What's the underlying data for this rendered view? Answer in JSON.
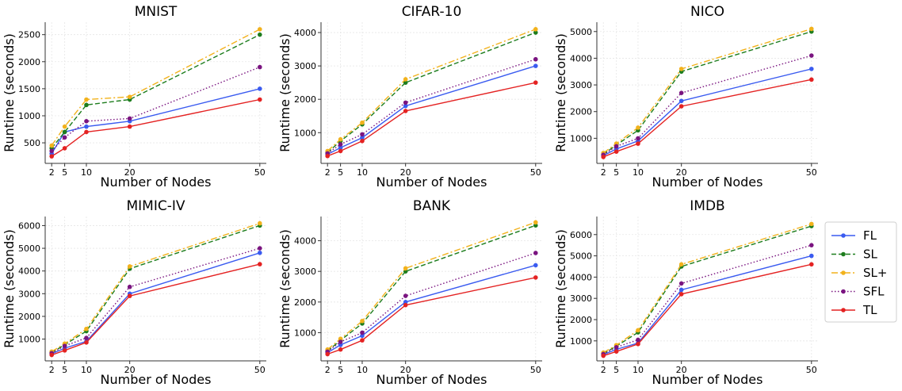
{
  "chart_data": [
    {
      "type": "line",
      "title": "MNIST",
      "xlabel": "Number of Nodes",
      "ylabel": "Runtime (seconds)",
      "x": [
        2,
        5,
        10,
        20,
        50
      ],
      "xlim": [
        0.5,
        51.5
      ],
      "ylim": [
        120,
        2730
      ],
      "yticks": [
        500,
        1000,
        1500,
        2000,
        2500
      ],
      "series": [
        {
          "name": "FL",
          "values": [
            300,
            700,
            800,
            900,
            1500
          ]
        },
        {
          "name": "SL",
          "values": [
            400,
            700,
            1200,
            1300,
            2500
          ]
        },
        {
          "name": "SL+",
          "values": [
            450,
            800,
            1300,
            1350,
            2600
          ]
        },
        {
          "name": "SFL",
          "values": [
            350,
            600,
            900,
            950,
            1900
          ]
        },
        {
          "name": "TL",
          "values": [
            250,
            400,
            700,
            800,
            1300
          ]
        }
      ]
    },
    {
      "type": "line",
      "title": "CIFAR-10",
      "xlabel": "Number of Nodes",
      "ylabel": "Runtime (seconds)",
      "x": [
        2,
        5,
        10,
        20,
        50
      ],
      "xlim": [
        0.5,
        51.5
      ],
      "ylim": [
        80,
        4310
      ],
      "yticks": [
        1000,
        2000,
        3000,
        4000
      ],
      "series": [
        {
          "name": "FL",
          "values": [
            350,
            550,
            850,
            1800,
            3000
          ]
        },
        {
          "name": "SL",
          "values": [
            400,
            750,
            1250,
            2500,
            4000
          ]
        },
        {
          "name": "SL+",
          "values": [
            450,
            800,
            1300,
            2600,
            4100
          ]
        },
        {
          "name": "SFL",
          "values": [
            380,
            650,
            950,
            1900,
            3200
          ]
        },
        {
          "name": "TL",
          "values": [
            300,
            450,
            750,
            1650,
            2500
          ]
        }
      ]
    },
    {
      "type": "line",
      "title": "NICO",
      "xlabel": "Number of Nodes",
      "ylabel": "Runtime (seconds)",
      "x": [
        2,
        5,
        10,
        20,
        50
      ],
      "xlim": [
        0.5,
        51.5
      ],
      "ylim": [
        60,
        5350
      ],
      "yticks": [
        1000,
        2000,
        3000,
        4000,
        5000
      ],
      "series": [
        {
          "name": "FL",
          "values": [
            350,
            600,
            900,
            2400,
            3600
          ]
        },
        {
          "name": "SL",
          "values": [
            400,
            750,
            1300,
            3500,
            5000
          ]
        },
        {
          "name": "SL+",
          "values": [
            450,
            800,
            1400,
            3600,
            5100
          ]
        },
        {
          "name": "SFL",
          "values": [
            380,
            700,
            1000,
            2700,
            4100
          ]
        },
        {
          "name": "TL",
          "values": [
            300,
            500,
            800,
            2200,
            3200
          ]
        }
      ]
    },
    {
      "type": "line",
      "title": "MIMIC-IV",
      "xlabel": "Number of Nodes",
      "ylabel": "Runtime (seconds)",
      "x": [
        2,
        5,
        10,
        20,
        50
      ],
      "xlim": [
        0.5,
        51.5
      ],
      "ylim": [
        40,
        6400
      ],
      "yticks": [
        1000,
        2000,
        3000,
        4000,
        5000,
        6000
      ],
      "series": [
        {
          "name": "FL",
          "values": [
            350,
            600,
            900,
            3000,
            4800
          ]
        },
        {
          "name": "SL",
          "values": [
            400,
            750,
            1350,
            4100,
            6000
          ]
        },
        {
          "name": "SL+",
          "values": [
            450,
            800,
            1450,
            4200,
            6100
          ]
        },
        {
          "name": "SFL",
          "values": [
            380,
            700,
            1050,
            3300,
            5000
          ]
        },
        {
          "name": "TL",
          "values": [
            300,
            500,
            850,
            2900,
            4300
          ]
        }
      ]
    },
    {
      "type": "line",
      "title": "BANK",
      "xlabel": "Number of Nodes",
      "ylabel": "Runtime (seconds)",
      "x": [
        2,
        5,
        10,
        20,
        50
      ],
      "xlim": [
        0.5,
        51.5
      ],
      "ylim": [
        80,
        4790
      ],
      "yticks": [
        1000,
        2000,
        3000,
        4000
      ],
      "series": [
        {
          "name": "FL",
          "values": [
            350,
            600,
            900,
            2000,
            3200
          ]
        },
        {
          "name": "SL",
          "values": [
            400,
            750,
            1300,
            3000,
            4500
          ]
        },
        {
          "name": "SL+",
          "values": [
            450,
            800,
            1380,
            3100,
            4600
          ]
        },
        {
          "name": "SFL",
          "values": [
            380,
            700,
            1000,
            2200,
            3600
          ]
        },
        {
          "name": "TL",
          "values": [
            300,
            450,
            750,
            1900,
            2800
          ]
        }
      ]
    },
    {
      "type": "line",
      "title": "IMDB",
      "xlabel": "Number of Nodes",
      "ylabel": "Runtime (seconds)",
      "x": [
        2,
        5,
        10,
        20,
        50
      ],
      "xlim": [
        0.5,
        51.5
      ],
      "ylim": [
        60,
        6850
      ],
      "yticks": [
        1000,
        2000,
        3000,
        4000,
        5000,
        6000
      ],
      "series": [
        {
          "name": "FL",
          "values": [
            350,
            600,
            900,
            3400,
            5000
          ]
        },
        {
          "name": "SL",
          "values": [
            400,
            750,
            1400,
            4500,
            6400
          ]
        },
        {
          "name": "SL+",
          "values": [
            450,
            800,
            1500,
            4600,
            6500
          ]
        },
        {
          "name": "SFL",
          "values": [
            380,
            700,
            1050,
            3700,
            5500
          ]
        },
        {
          "name": "TL",
          "values": [
            300,
            500,
            850,
            3200,
            4600
          ]
        }
      ]
    }
  ],
  "series_styles": [
    {
      "name": "FL",
      "color": "#3a5bf0",
      "dash": "solid"
    },
    {
      "name": "SL",
      "color": "#1d7d1d",
      "dash": "dashed"
    },
    {
      "name": "SL+",
      "color": "#f2b21c",
      "dash": "dashdot"
    },
    {
      "name": "SFL",
      "color": "#7a1480",
      "dash": "dotted"
    },
    {
      "name": "TL",
      "color": "#e42222",
      "dash": "solid"
    }
  ],
  "legend": {
    "placement": "right-center",
    "items": [
      "FL",
      "SL",
      "SL+",
      "SFL",
      "TL"
    ]
  }
}
